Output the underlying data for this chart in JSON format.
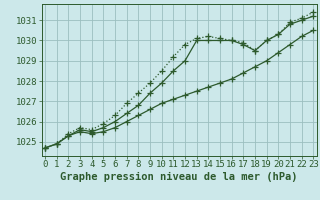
{
  "xlabel": "Graphe pression niveau de la mer (hPa)",
  "x": [
    0,
    1,
    2,
    3,
    4,
    5,
    6,
    7,
    8,
    9,
    10,
    11,
    12,
    13,
    14,
    15,
    16,
    17,
    18,
    19,
    20,
    21,
    22,
    23
  ],
  "line1": [
    1024.7,
    1024.9,
    1025.3,
    1025.5,
    1025.4,
    1025.5,
    1025.7,
    1026.0,
    1026.3,
    1026.6,
    1026.9,
    1027.1,
    1027.3,
    1027.5,
    1027.7,
    1027.9,
    1028.1,
    1028.4,
    1028.7,
    1029.0,
    1029.4,
    1029.8,
    1030.2,
    1030.5
  ],
  "line2": [
    1024.7,
    1024.9,
    1025.3,
    1025.6,
    1025.5,
    1025.7,
    1026.0,
    1026.4,
    1026.8,
    1027.4,
    1027.9,
    1028.5,
    1029.0,
    1030.0,
    1030.0,
    1030.0,
    1030.0,
    1029.8,
    1029.5,
    1030.0,
    1030.3,
    1030.8,
    1031.0,
    1031.2
  ],
  "line3": [
    1024.7,
    1024.9,
    1025.4,
    1025.7,
    1025.6,
    1025.9,
    1026.3,
    1026.9,
    1027.4,
    1027.9,
    1028.5,
    1029.2,
    1029.8,
    1030.1,
    1030.2,
    1030.1,
    1030.0,
    1029.9,
    1029.5,
    1030.0,
    1030.3,
    1030.9,
    1031.1,
    1031.4
  ],
  "bg_color": "#cce8ea",
  "grid_color": "#9bbfbf",
  "line_color": "#2d5a2d",
  "ylim_min": 1024.3,
  "ylim_max": 1031.8,
  "yticks": [
    1025,
    1026,
    1027,
    1028,
    1029,
    1030,
    1031
  ],
  "xticks": [
    0,
    1,
    2,
    3,
    4,
    5,
    6,
    7,
    8,
    9,
    10,
    11,
    12,
    13,
    14,
    15,
    16,
    17,
    18,
    19,
    20,
    21,
    22,
    23
  ],
  "marker": "+",
  "markersize": 4,
  "linewidth": 0.9,
  "label_fontsize": 7.5,
  "tick_fontsize": 6.5
}
